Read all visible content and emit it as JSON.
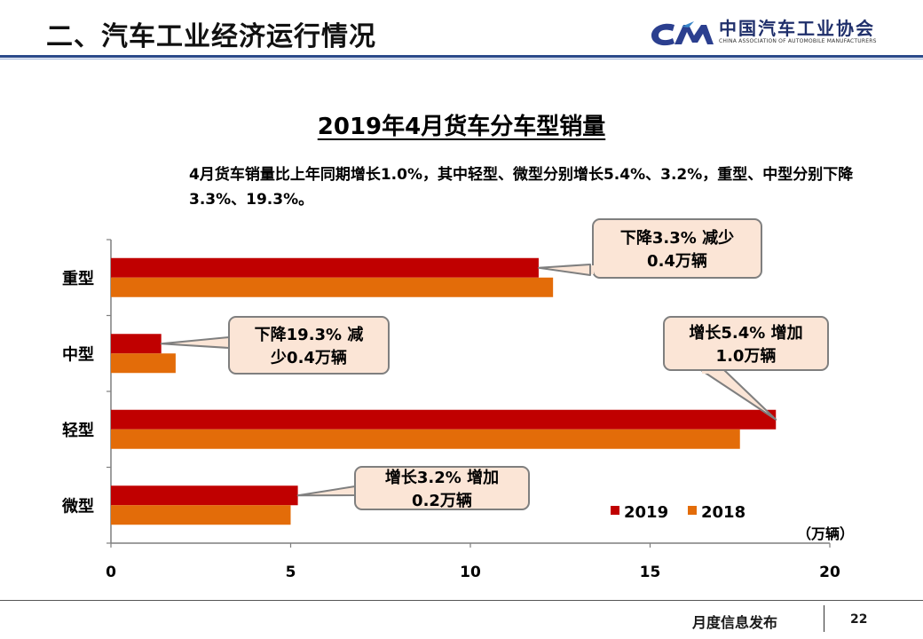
{
  "header": {
    "title": "二、汽车工业经济运行情况"
  },
  "logo": {
    "cn": "中国汽车工业协会",
    "en": "CHINA ASSOCIATION OF AUTOMOBILE MANUFACTURERS"
  },
  "subtitle": "4月货车销量比上年同期增长1.0%，其中轻型、微型分别增长5.4%、3.2%，重型、中型分别下降3.3%、19.3%。",
  "footer": {
    "text": "月度信息发布",
    "page": "22"
  },
  "colors": {
    "series2019": "#c00000",
    "series2018": "#e36c09",
    "callout_fill": "#fbe5d6",
    "callout_stroke": "#7f7f7f"
  },
  "chart_data": {
    "type": "bar",
    "orientation": "horizontal",
    "title": "2019年4月货车分车型销量",
    "categories": [
      "重型",
      "中型",
      "轻型",
      "微型"
    ],
    "series": [
      {
        "name": "2019",
        "values": [
          11.9,
          1.4,
          18.5,
          5.2
        ]
      },
      {
        "name": "2018",
        "values": [
          12.3,
          1.8,
          17.5,
          5.0
        ]
      }
    ],
    "xlim": [
      0,
      20
    ],
    "xticks": [
      "0",
      "5",
      "10",
      "15",
      "20"
    ],
    "unit": "（万辆）",
    "legend_position": "bottom-right",
    "annotations": [
      {
        "category": "重型",
        "lines": [
          "下降3.3% 减少",
          "0.4万辆"
        ]
      },
      {
        "category": "中型",
        "lines": [
          "下降19.3% 减",
          "少0.4万辆"
        ]
      },
      {
        "category": "轻型",
        "lines": [
          "增长5.4% 增加",
          "1.0万辆"
        ]
      },
      {
        "category": "微型",
        "lines": [
          "增长3.2% 增加",
          "0.2万辆"
        ]
      }
    ]
  }
}
